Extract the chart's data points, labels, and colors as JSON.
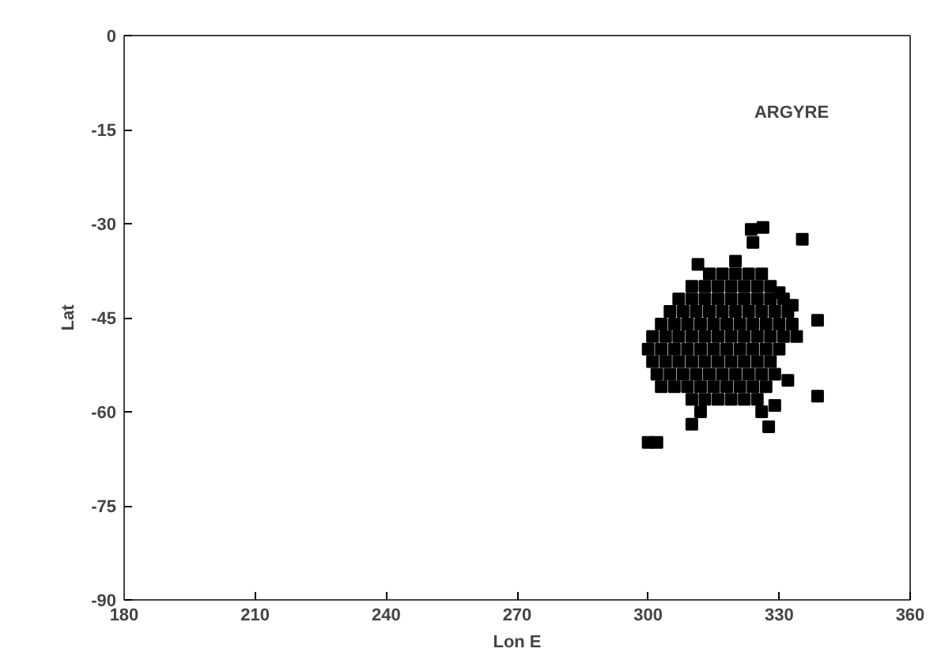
{
  "chart_data": {
    "type": "scatter",
    "xlabel": "Lon E",
    "ylabel": "Lat",
    "annotations": [
      "ARGYRE"
    ],
    "xlim": [
      180,
      360
    ],
    "xticks": [
      180,
      210,
      240,
      270,
      300,
      330,
      360
    ],
    "ylim": [
      -90,
      0
    ],
    "yticks": [
      -90,
      -75,
      -60,
      -45,
      -30,
      -15,
      0
    ],
    "grid": false,
    "marker": "square",
    "series": [
      {
        "color": "#000000",
        "x": [
          314,
          317,
          320,
          323,
          326,
          310,
          313,
          316,
          319,
          322,
          325,
          328,
          307,
          310,
          313,
          316,
          319,
          322,
          325,
          328,
          331,
          305,
          308,
          311,
          314,
          317,
          320,
          323,
          326,
          329,
          332,
          303,
          306,
          309,
          312,
          315,
          318,
          321,
          324,
          327,
          330,
          333,
          301,
          304,
          307,
          310,
          313,
          316,
          319,
          322,
          325,
          328,
          331,
          334,
          300,
          303,
          306,
          309,
          312,
          315,
          318,
          321,
          324,
          327,
          330,
          301,
          304,
          307,
          310,
          313,
          316,
          319,
          322,
          325,
          328,
          302,
          305,
          308,
          311,
          314,
          317,
          320,
          323,
          326,
          329,
          303,
          306,
          309,
          312,
          315,
          318,
          321,
          324,
          327,
          310,
          313,
          316,
          319,
          322,
          325,
          323.6,
          326.3,
          324,
          335.3,
          338.8,
          338.8,
          327.6,
          300,
          302,
          310,
          311.4,
          320,
          330,
          333,
          332,
          329,
          326,
          312
        ],
        "values": [
          -38,
          -38,
          -38,
          -38,
          -38,
          -40,
          -40,
          -40,
          -40,
          -40,
          -40,
          -40,
          -42,
          -42,
          -42,
          -42,
          -42,
          -42,
          -42,
          -42,
          -42,
          -44,
          -44,
          -44,
          -44,
          -44,
          -44,
          -44,
          -44,
          -44,
          -44,
          -46,
          -46,
          -46,
          -46,
          -46,
          -46,
          -46,
          -46,
          -46,
          -46,
          -46,
          -48,
          -48,
          -48,
          -48,
          -48,
          -48,
          -48,
          -48,
          -48,
          -48,
          -48,
          -48,
          -50,
          -50,
          -50,
          -50,
          -50,
          -50,
          -50,
          -50,
          -50,
          -50,
          -50,
          -52,
          -52,
          -52,
          -52,
          -52,
          -52,
          -52,
          -52,
          -52,
          -52,
          -54,
          -54,
          -54,
          -54,
          -54,
          -54,
          -54,
          -54,
          -54,
          -54,
          -56,
          -56,
          -56,
          -56,
          -56,
          -56,
          -56,
          -56,
          -56,
          -58,
          -58,
          -58,
          -58,
          -58,
          -58,
          -30.9,
          -30.6,
          -33,
          -32.5,
          -45.4,
          -57.5,
          -62.4,
          -64.9,
          -64.9,
          -62,
          -36.5,
          -36,
          -41,
          -43,
          -55,
          -59,
          -60,
          -60
        ]
      }
    ]
  }
}
